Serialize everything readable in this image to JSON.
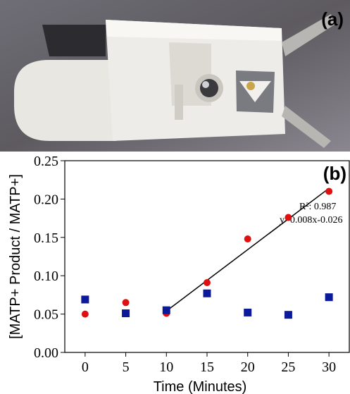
{
  "panel_a": {
    "label": "(a)"
  },
  "chart_data": {
    "type": "scatter",
    "panel_label": "(b)",
    "x_label": "Time (Minutes)",
    "y_label": "[MATP+ Product / MATP+]",
    "x": [
      0,
      5,
      10,
      15,
      20,
      25,
      30
    ],
    "series": [
      {
        "color": "#e01010",
        "marker": "circle",
        "values": [
          0.05,
          0.065,
          0.051,
          0.091,
          0.148,
          0.176,
          0.21
        ]
      },
      {
        "color": "#0a1a9a",
        "marker": "square",
        "values": [
          0.069,
          0.051,
          0.055,
          0.077,
          0.052,
          0.049,
          0.072
        ]
      }
    ],
    "fit": {
      "x": [
        10,
        30
      ],
      "values": [
        0.054,
        0.214
      ],
      "color": "#000000"
    },
    "annotations": [
      "R²: 0.987",
      "y=0.008x-0.026"
    ],
    "xlim": [
      -2.5,
      32.5
    ],
    "ylim": [
      0,
      0.25
    ],
    "xticks": [
      0,
      5,
      10,
      15,
      20,
      25,
      30
    ],
    "yticks": [
      {
        "value": 0,
        "label": "0.00"
      },
      {
        "value": 0.05,
        "label": "0.05"
      },
      {
        "value": 0.1,
        "label": "0.10"
      },
      {
        "value": 0.15,
        "label": "0.15"
      },
      {
        "value": 0.2,
        "label": "0.20"
      },
      {
        "value": 0.25,
        "label": "0.25"
      }
    ]
  }
}
